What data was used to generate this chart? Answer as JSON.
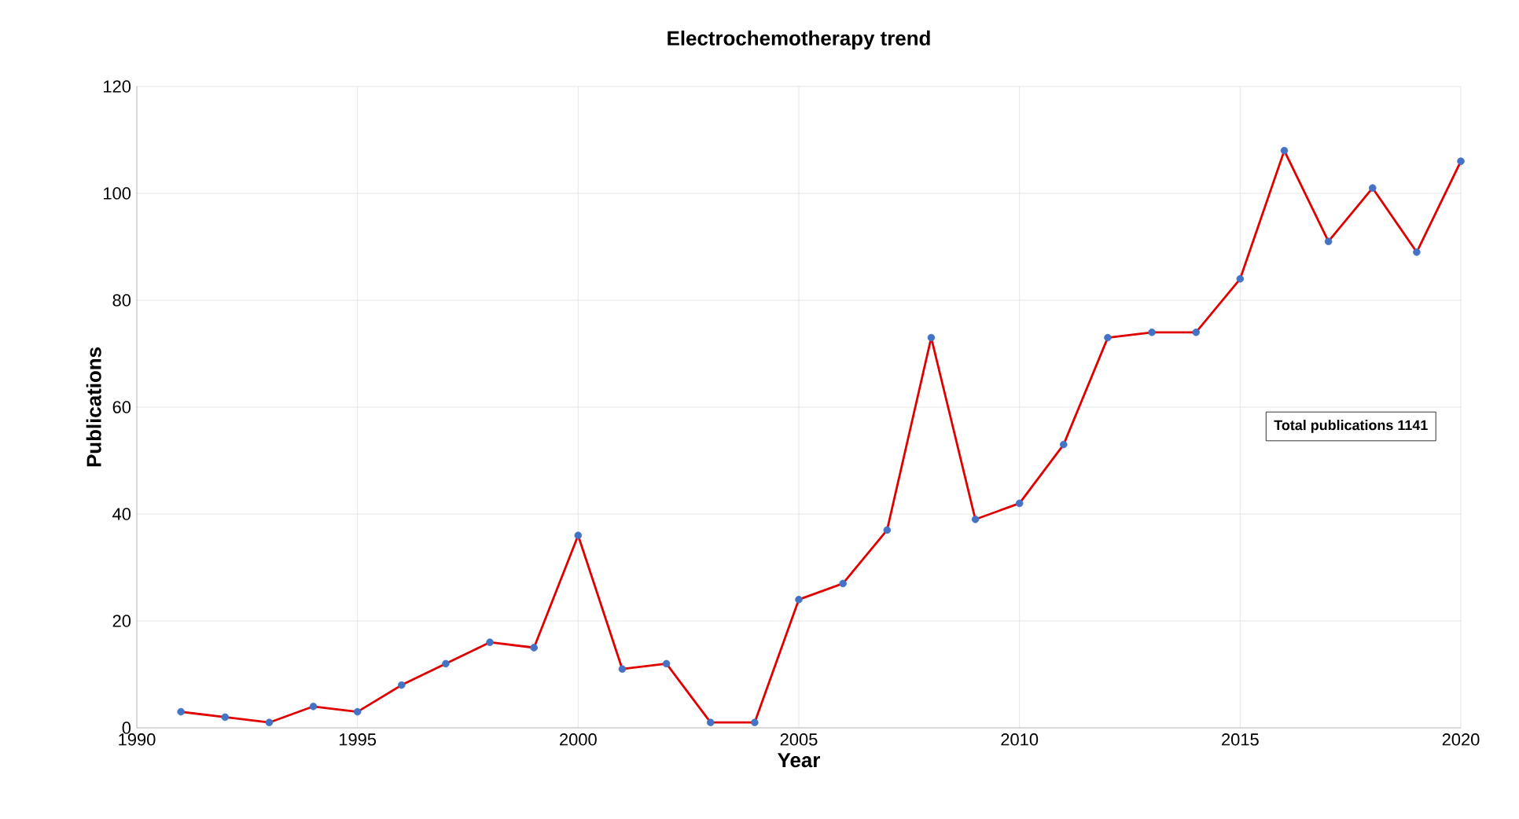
{
  "chart_data": {
    "type": "line",
    "title": "Electrochemotherapy trend",
    "xlabel": "Year",
    "ylabel": "Publications",
    "x": [
      1991,
      1992,
      1993,
      1994,
      1995,
      1996,
      1997,
      1998,
      1999,
      2000,
      2001,
      2002,
      2003,
      2004,
      2005,
      2006,
      2007,
      2008,
      2009,
      2010,
      2011,
      2012,
      2013,
      2014,
      2015,
      2016,
      2017,
      2018,
      2019,
      2020
    ],
    "series": [
      {
        "color": "#e00000",
        "colors": [
          "#4472c4",
          "#4472c4",
          "#4472c4",
          "#4472c4",
          "#4472c4",
          "#4472c4",
          "#4472c4",
          "#4472c4",
          "#4472c4",
          "#4472c4",
          "#4472c4",
          "#4472c4",
          "#4472c4",
          "#4472c4",
          "#4472c4",
          "#4472c4",
          "#4472c4",
          "#4472c4",
          "#4472c4",
          "#4472c4",
          "#4472c4",
          "#4472c4",
          "#4472c4",
          "#4472c4",
          "#4472c4",
          "#4472c4",
          "#4472c4",
          "#4472c4",
          "#4472c4",
          "#4472c4"
        ],
        "values": [
          3,
          2,
          1,
          4,
          3,
          8,
          12,
          16,
          15,
          36,
          11,
          12,
          1,
          1,
          24,
          27,
          37,
          73,
          39,
          42,
          53,
          73,
          74,
          74,
          84,
          108,
          91,
          101,
          89,
          106
        ]
      }
    ],
    "marker": "circle",
    "xlim": [
      1990,
      2020
    ],
    "ylim": [
      0,
      120
    ],
    "xticks": [
      1990,
      1995,
      2000,
      2005,
      2010,
      2015,
      2020
    ],
    "yticks": [
      0,
      20,
      40,
      60,
      80,
      100,
      120
    ],
    "grid": true,
    "annotations": [
      "Total publications 1141"
    ]
  }
}
